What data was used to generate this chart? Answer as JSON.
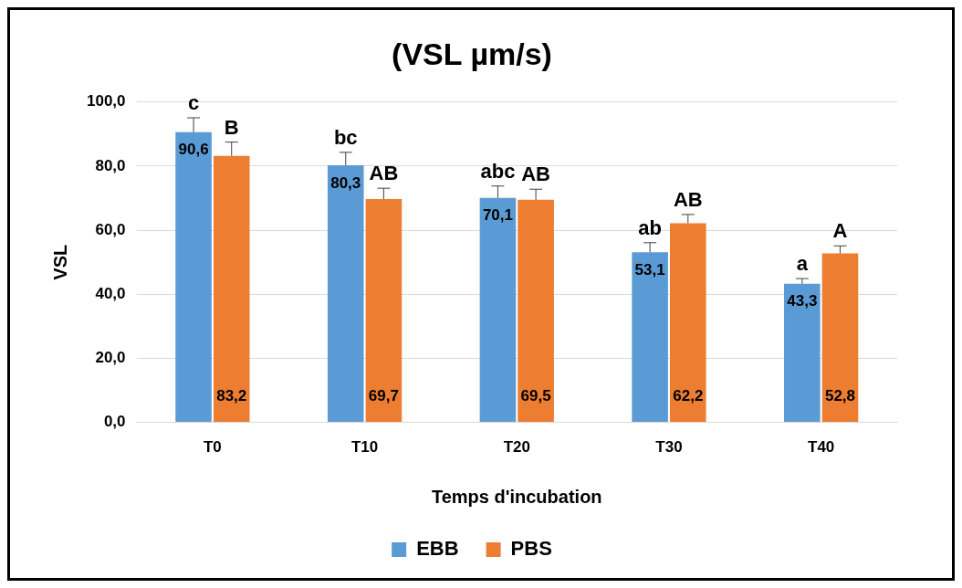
{
  "chart_data": {
    "type": "bar",
    "title": "(VSL µm/s)",
    "xlabel": "Temps d'incubation",
    "ylabel": "VSL",
    "categories": [
      "T0",
      "T10",
      "T20",
      "T30",
      "T40"
    ],
    "series": [
      {
        "name": "EBB",
        "color": "#5b9bd5",
        "values": [
          90.6,
          80.3,
          70.1,
          53.1,
          43.3
        ],
        "errors": [
          4.5,
          4,
          3.7,
          3,
          1.6
        ],
        "value_labels": [
          "90,6",
          "80,3",
          "70,1",
          "53,1",
          "43,3"
        ]
      },
      {
        "name": "PBS",
        "color": "#ed7d31",
        "values": [
          83.2,
          69.7,
          69.5,
          62.2,
          52.8
        ],
        "errors": [
          4.3,
          3.4,
          3.3,
          2.7,
          2.3
        ],
        "value_labels": [
          "83,2",
          "69,7",
          "69,5",
          "62,2",
          "52,8"
        ]
      }
    ],
    "ylim": [
      0,
      100
    ],
    "yticks": [
      {
        "value": 0,
        "label": "0,0"
      },
      {
        "value": 20,
        "label": "20,0"
      },
      {
        "value": 40,
        "label": "40,0"
      },
      {
        "value": 60,
        "label": "60,0"
      },
      {
        "value": 80,
        "label": "80,0"
      },
      {
        "value": 100,
        "label": "100,0"
      }
    ],
    "grid": "y",
    "legend": "bottom",
    "annotations": [
      {
        "text": "c",
        "x": "T0",
        "y": 90.6
      },
      {
        "text": "B",
        "x": "T0",
        "y": 83.2
      },
      {
        "text": "bc",
        "x": "T10",
        "y": 80.3
      },
      {
        "text": "AB",
        "x": "T10",
        "y": 69.7
      },
      {
        "text": "abc",
        "x": "T20",
        "y": 70.1
      },
      {
        "text": "AB",
        "x": "T20",
        "y": 69.5
      },
      {
        "text": "ab",
        "x": "T30",
        "y": 53.1
      },
      {
        "text": "AB",
        "x": "T30",
        "y": 62.2
      },
      {
        "text": "a",
        "x": "T40",
        "y": 43.3
      },
      {
        "text": "A",
        "x": "T40",
        "y": 52.8
      }
    ]
  }
}
